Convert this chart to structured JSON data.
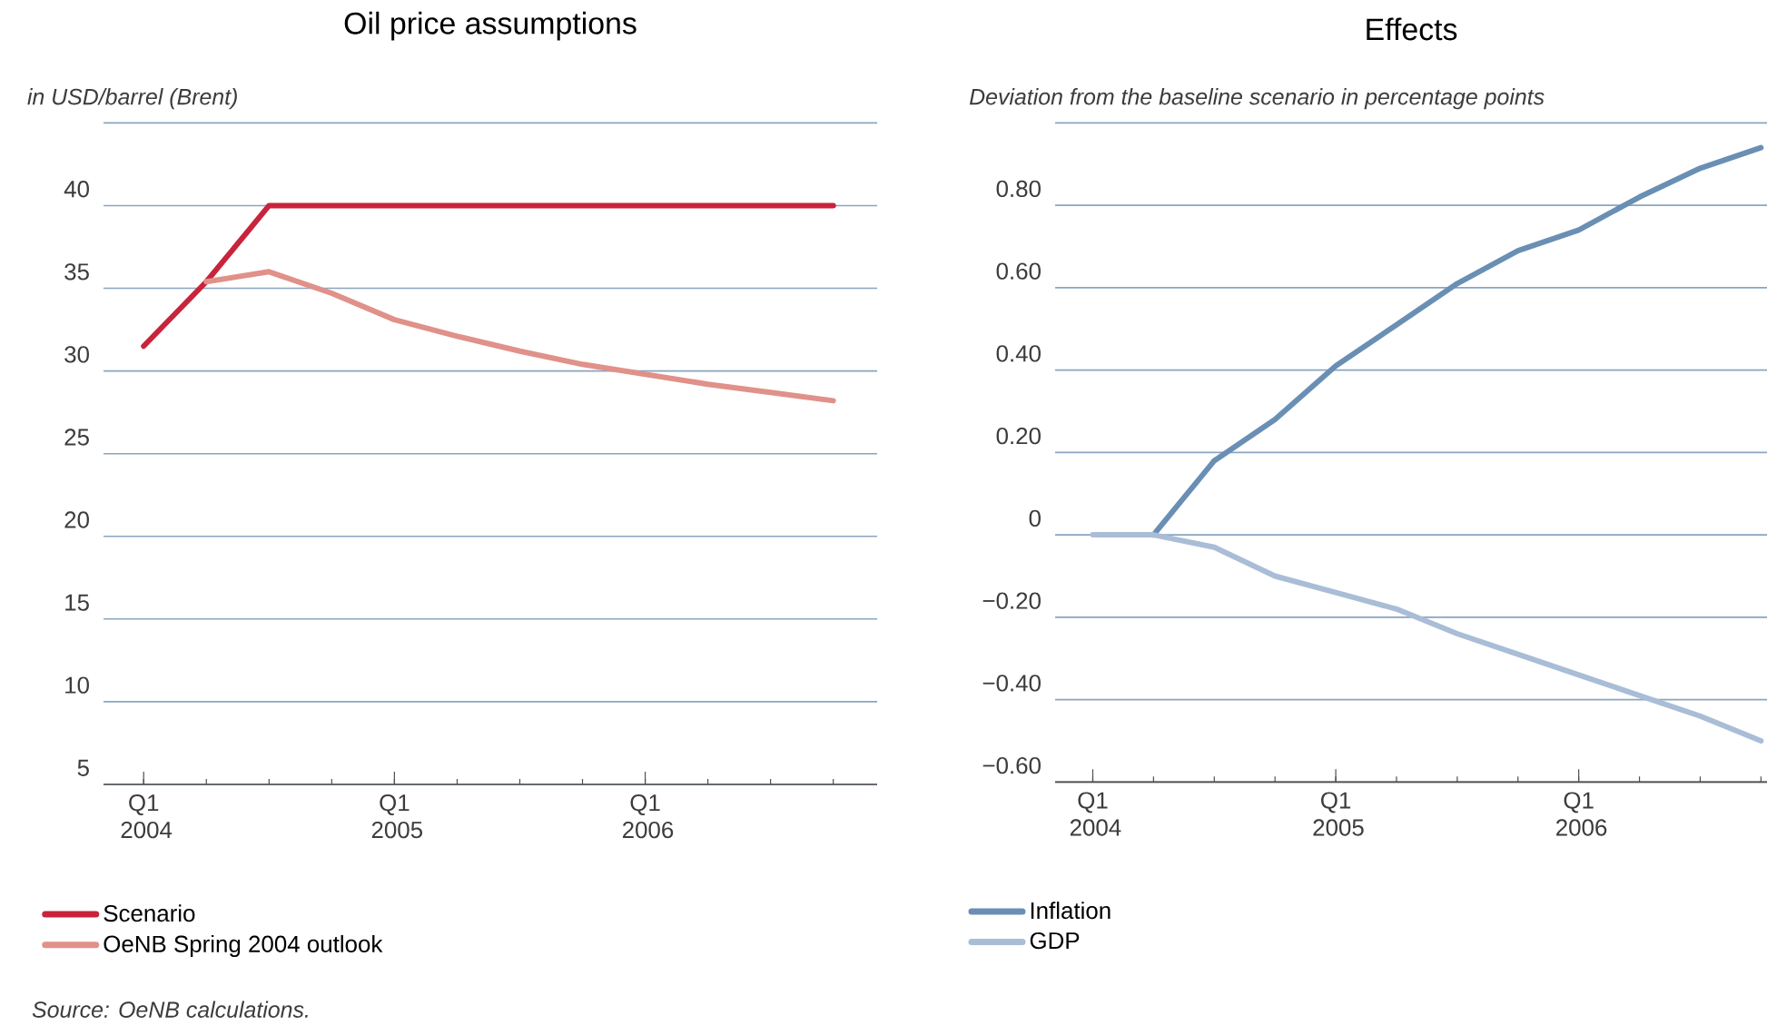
{
  "chart_data": [
    {
      "type": "line",
      "title": "Oil price assumptions",
      "ylabel": "in USD/barrel (Brent)",
      "categories": [
        "Q1 2004",
        null,
        null,
        null,
        "Q1 2005",
        null,
        null,
        null,
        "Q1 2006",
        null,
        null,
        null
      ],
      "series": [
        {
          "name": "Scenario",
          "color": "#c8243c",
          "values": [
            31.5,
            35.4,
            40,
            40,
            40,
            40,
            40,
            40,
            40,
            40,
            40,
            40
          ]
        },
        {
          "name": "OeNB Spring 2004 outlook",
          "color": "#e0918a",
          "values": [
            null,
            35.4,
            36.0,
            34.7,
            33.1,
            32.1,
            31.2,
            30.4,
            29.8,
            29.2,
            28.7,
            28.2
          ]
        }
      ],
      "ylim": [
        5,
        45
      ],
      "yticks": [
        5,
        10,
        15,
        20,
        25,
        30,
        35,
        40,
        {
          "value": 45,
          "label": null
        }
      ],
      "grid": "y",
      "legend": "bottom",
      "marker": "none",
      "line_style": "solid",
      "annotations": [
        "Source: OeNB calculations."
      ]
    },
    {
      "type": "line",
      "title": "Effects",
      "ylabel": "Deviation from the baseline scenario in percentage points",
      "categories": [
        "Q1 2004",
        null,
        null,
        null,
        "Q1 2005",
        null,
        null,
        null,
        "Q1 2006",
        null,
        null,
        null
      ],
      "series": [
        {
          "name": "Inflation",
          "color": "#6a8fb4",
          "values": [
            null,
            0,
            0.18,
            0.28,
            0.41,
            0.51,
            0.61,
            0.69,
            0.74,
            0.82,
            0.89,
            0.94
          ]
        },
        {
          "name": "GDP",
          "color": "#a9bdd6",
          "values": [
            0,
            0,
            -0.03,
            -0.1,
            -0.14,
            -0.18,
            -0.24,
            -0.29,
            -0.34,
            -0.39,
            -0.44,
            -0.5
          ]
        }
      ],
      "ylim": [
        -0.6,
        1.0
      ],
      "yticks": [
        {
          "value": -0.6,
          "label": "−0.60"
        },
        {
          "value": -0.4,
          "label": "−0.40"
        },
        {
          "value": -0.2,
          "label": "−0.20"
        },
        0,
        {
          "value": 0.2,
          "label": "0.20"
        },
        {
          "value": 0.4,
          "label": "0.40"
        },
        {
          "value": 0.6,
          "label": "0.60"
        },
        {
          "value": 0.8,
          "label": "0.80"
        },
        {
          "value": 1.0,
          "label": null
        }
      ],
      "grid": "y",
      "legend": "bottom",
      "marker": "none",
      "line_style": "solid"
    }
  ]
}
